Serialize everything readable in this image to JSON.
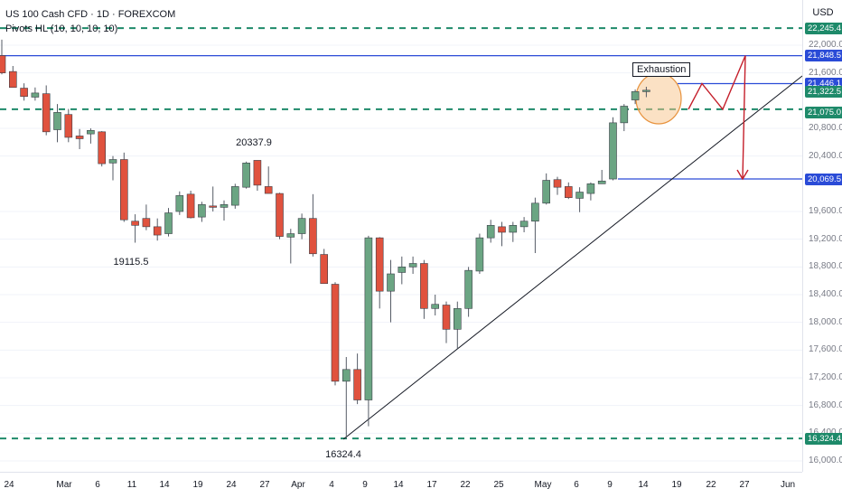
{
  "legend": {
    "symbol": "US 100 Cash CFD · 1D · FOREXCOM",
    "indicator": "Pivots HL (10, 10, 10, 10)"
  },
  "currency": "USD",
  "colors": {
    "up": "#6ba583",
    "down": "#e0523e",
    "dashed_level": "#1e8a6a",
    "blue_level": "#2a4bd7",
    "projection": "#c41e2a",
    "highlight": "#f7c48a"
  },
  "price_ticks": [
    "22,000.0",
    "21,600.0",
    "20,800.0",
    "20,400.0",
    "19,600.0",
    "19,200.0",
    "18,800.0",
    "18,400.0",
    "18,000.0",
    "17,600.0",
    "17,200.0",
    "16,800.0",
    "16,400.0",
    "16,000.0"
  ],
  "price_badges": [
    {
      "label": "22,245.4",
      "kind": "green"
    },
    {
      "label": "21,848.5",
      "kind": "blue"
    },
    {
      "label": "21,446.1",
      "kind": "blue"
    },
    {
      "label": "21,322.5",
      "kind": "green"
    },
    {
      "label": "21,075.0",
      "kind": "green"
    },
    {
      "label": "20,069.5",
      "kind": "blue"
    },
    {
      "label": "16,324.4",
      "kind": "green"
    }
  ],
  "time_labels": [
    "24",
    "Mar",
    "6",
    "11",
    "14",
    "19",
    "24",
    "27",
    "Apr",
    "4",
    "9",
    "14",
    "17",
    "22",
    "25",
    "May",
    "6",
    "9",
    "14",
    "19",
    "22",
    "27",
    "Jun"
  ],
  "annotations": {
    "pivot_high": "20337.9",
    "pivot_low_1": "19115.5",
    "pivot_low_2": "16324.4",
    "callout": "Exhaustion"
  },
  "chart_data": {
    "type": "candlestick",
    "ylim": [
      15950,
      22400
    ],
    "levels": {
      "dashed": [
        22245.4,
        21075.0,
        16324.4
      ],
      "solid": [
        21848.5,
        21446.1,
        20069.5
      ]
    },
    "candles": [
      {
        "o": 21850,
        "h": 22080,
        "l": 21580,
        "c": 21600
      },
      {
        "o": 21620,
        "h": 21700,
        "l": 21400,
        "c": 21390
      },
      {
        "o": 21380,
        "h": 21450,
        "l": 21200,
        "c": 21260
      },
      {
        "o": 21250,
        "h": 21390,
        "l": 21200,
        "c": 21310
      },
      {
        "o": 21300,
        "h": 21420,
        "l": 20700,
        "c": 20750
      },
      {
        "o": 20780,
        "h": 21150,
        "l": 20600,
        "c": 21030
      },
      {
        "o": 21000,
        "h": 21080,
        "l": 20600,
        "c": 20670
      },
      {
        "o": 20690,
        "h": 20790,
        "l": 20500,
        "c": 20650
      },
      {
        "o": 20720,
        "h": 20800,
        "l": 20580,
        "c": 20770
      },
      {
        "o": 20750,
        "h": 20760,
        "l": 20250,
        "c": 20290
      },
      {
        "o": 20300,
        "h": 20400,
        "l": 20050,
        "c": 20350
      },
      {
        "o": 20350,
        "h": 20450,
        "l": 19450,
        "c": 19480
      },
      {
        "o": 19460,
        "h": 19560,
        "l": 19150,
        "c": 19400
      },
      {
        "o": 19500,
        "h": 19700,
        "l": 19330,
        "c": 19380
      },
      {
        "o": 19380,
        "h": 19500,
        "l": 19180,
        "c": 19260
      },
      {
        "o": 19280,
        "h": 19650,
        "l": 19240,
        "c": 19580
      },
      {
        "o": 19600,
        "h": 19890,
        "l": 19550,
        "c": 19830
      },
      {
        "o": 19850,
        "h": 19900,
        "l": 19500,
        "c": 19510
      },
      {
        "o": 19520,
        "h": 19740,
        "l": 19450,
        "c": 19700
      },
      {
        "o": 19680,
        "h": 19960,
        "l": 19600,
        "c": 19660
      },
      {
        "o": 19660,
        "h": 19760,
        "l": 19470,
        "c": 19700
      },
      {
        "o": 19690,
        "h": 20000,
        "l": 19640,
        "c": 19960
      },
      {
        "o": 19950,
        "h": 20320,
        "l": 19930,
        "c": 20300
      },
      {
        "o": 20338,
        "h": 20338,
        "l": 19900,
        "c": 19980
      },
      {
        "o": 19960,
        "h": 20250,
        "l": 19860,
        "c": 19860
      },
      {
        "o": 19860,
        "h": 19870,
        "l": 19200,
        "c": 19240
      },
      {
        "o": 19230,
        "h": 19350,
        "l": 18850,
        "c": 19280
      },
      {
        "o": 19280,
        "h": 19570,
        "l": 19200,
        "c": 19500
      },
      {
        "o": 19500,
        "h": 19850,
        "l": 18950,
        "c": 18990
      },
      {
        "o": 18980,
        "h": 19060,
        "l": 18580,
        "c": 18560
      },
      {
        "o": 18550,
        "h": 18580,
        "l": 17090,
        "c": 17150
      },
      {
        "o": 17150,
        "h": 17500,
        "l": 16324,
        "c": 17320
      },
      {
        "o": 17320,
        "h": 17550,
        "l": 16820,
        "c": 16880
      },
      {
        "o": 16880,
        "h": 19250,
        "l": 16500,
        "c": 19220
      },
      {
        "o": 19220,
        "h": 19230,
        "l": 18200,
        "c": 18450
      },
      {
        "o": 18450,
        "h": 18900,
        "l": 18000,
        "c": 18700
      },
      {
        "o": 18720,
        "h": 18950,
        "l": 18550,
        "c": 18800
      },
      {
        "o": 18800,
        "h": 18950,
        "l": 18700,
        "c": 18850
      },
      {
        "o": 18850,
        "h": 18900,
        "l": 18050,
        "c": 18200
      },
      {
        "o": 18200,
        "h": 18400,
        "l": 18100,
        "c": 18260
      },
      {
        "o": 18250,
        "h": 18300,
        "l": 17700,
        "c": 17900
      },
      {
        "o": 17900,
        "h": 18300,
        "l": 17620,
        "c": 18200
      },
      {
        "o": 18200,
        "h": 18800,
        "l": 18080,
        "c": 18750
      },
      {
        "o": 18740,
        "h": 19280,
        "l": 18700,
        "c": 19220
      },
      {
        "o": 19220,
        "h": 19480,
        "l": 19150,
        "c": 19400
      },
      {
        "o": 19380,
        "h": 19450,
        "l": 19100,
        "c": 19300
      },
      {
        "o": 19300,
        "h": 19450,
        "l": 19160,
        "c": 19400
      },
      {
        "o": 19380,
        "h": 19520,
        "l": 19300,
        "c": 19460
      },
      {
        "o": 19460,
        "h": 19800,
        "l": 19000,
        "c": 19720
      },
      {
        "o": 19720,
        "h": 20150,
        "l": 19700,
        "c": 20050
      },
      {
        "o": 20060,
        "h": 20100,
        "l": 19840,
        "c": 19950
      },
      {
        "o": 19960,
        "h": 20020,
        "l": 19780,
        "c": 19800
      },
      {
        "o": 19790,
        "h": 19950,
        "l": 19590,
        "c": 19880
      },
      {
        "o": 19860,
        "h": 20020,
        "l": 19760,
        "c": 20000
      },
      {
        "o": 20000,
        "h": 20200,
        "l": 20020,
        "c": 20040
      },
      {
        "o": 20069,
        "h": 20960,
        "l": 20050,
        "c": 20880
      },
      {
        "o": 20880,
        "h": 21150,
        "l": 20760,
        "c": 21120
      },
      {
        "o": 21210,
        "h": 21360,
        "l": 21150,
        "c": 21330
      },
      {
        "o": 21330,
        "h": 21400,
        "l": 21250,
        "c": 21350
      }
    ],
    "projection_zigzag": [
      [
        21322.5
      ],
      [
        21075.0
      ],
      [
        21446.1
      ],
      [
        21075.0
      ],
      [
        21848.5
      ],
      [
        20069.5
      ]
    ]
  }
}
